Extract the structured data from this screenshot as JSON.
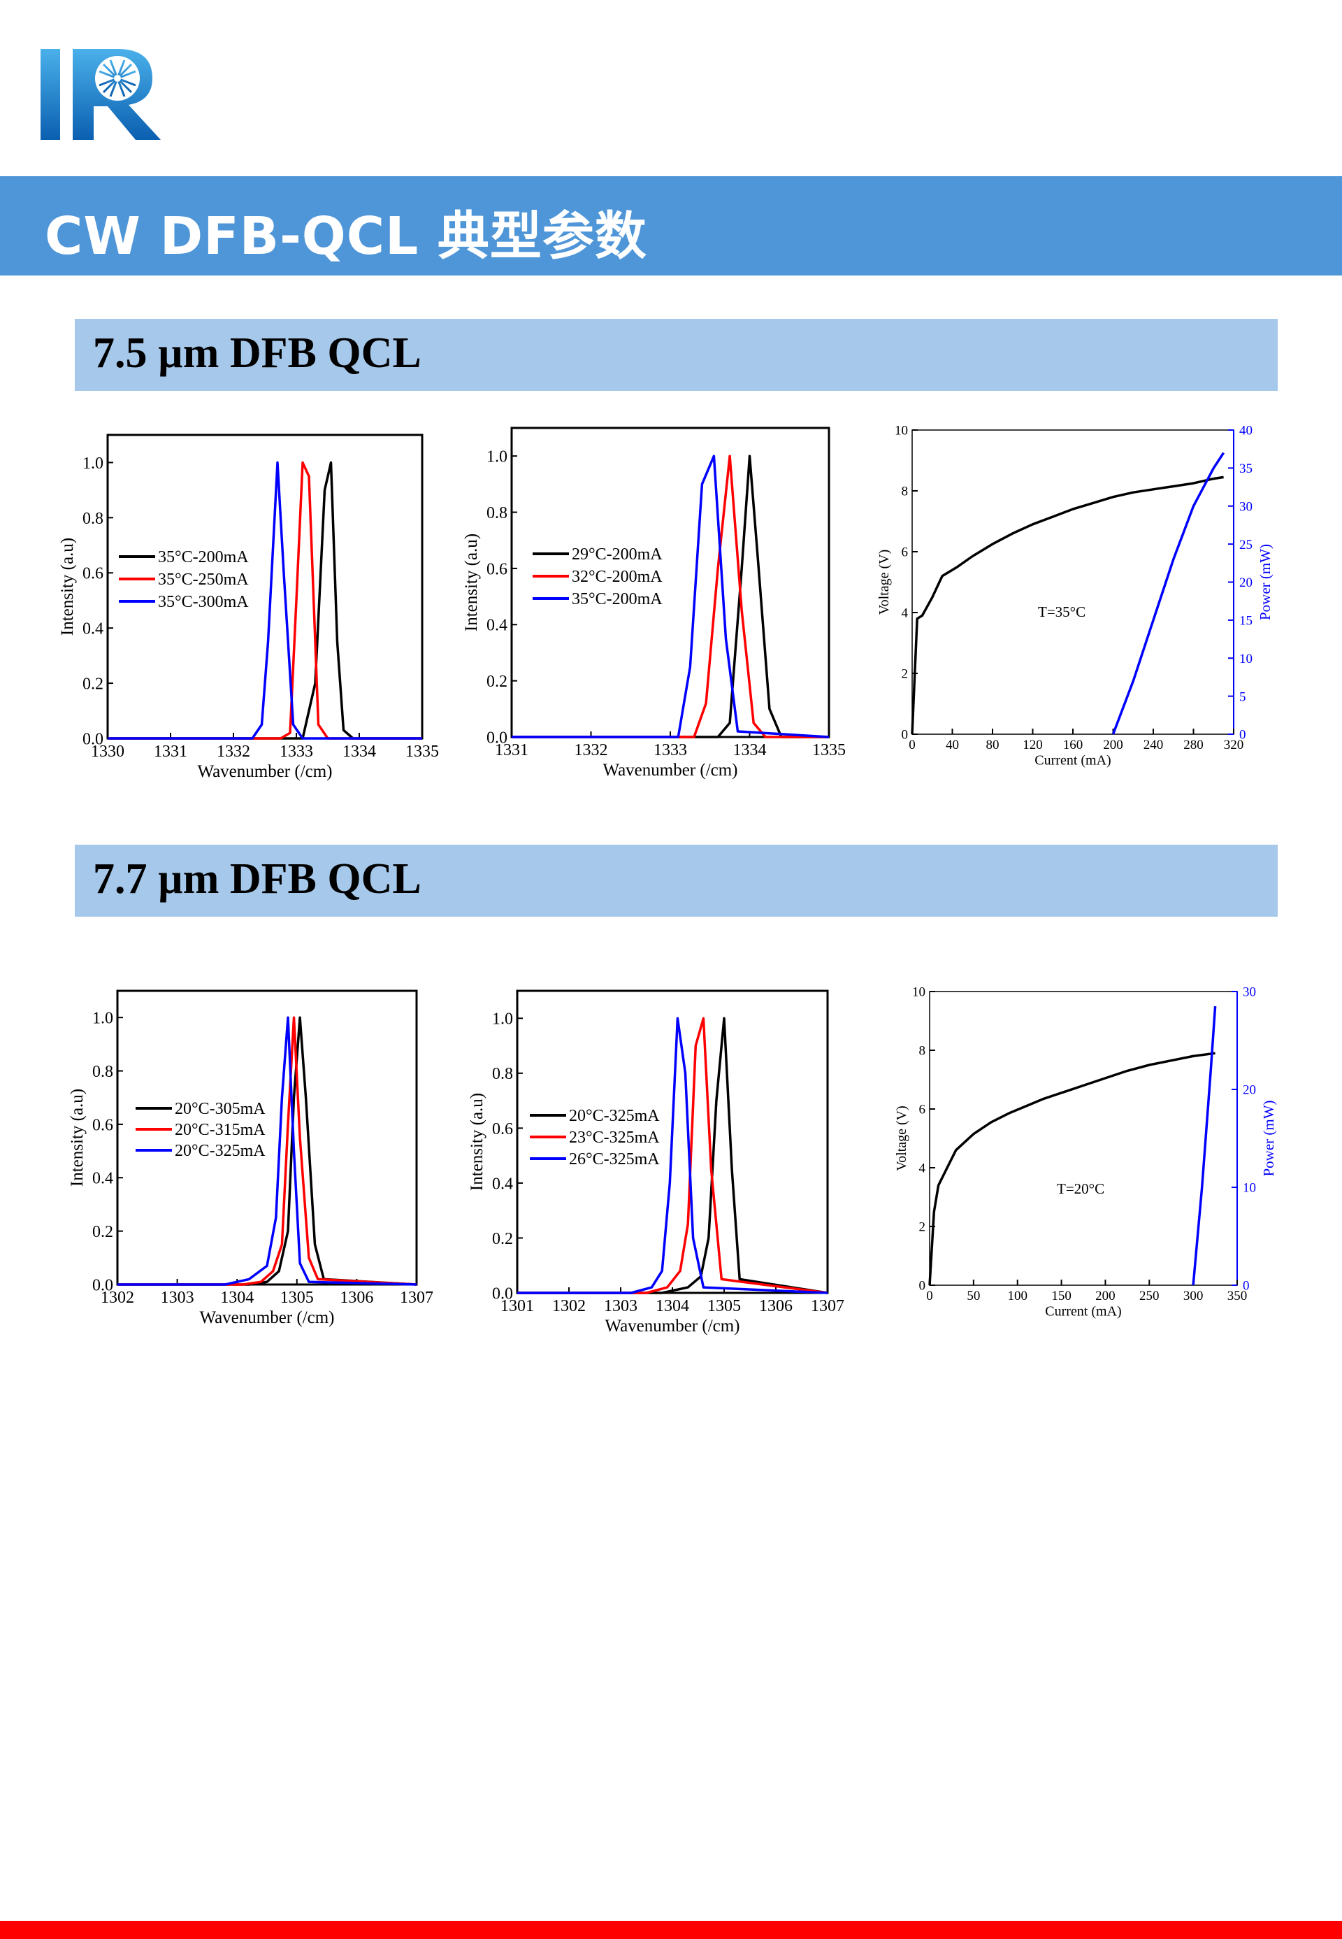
{
  "header": {
    "title": "CW DFB-QCL 典型参数",
    "colors": {
      "title_bar": "#4f96d8",
      "section_bar": "#a6c8ea",
      "bottom_bar": "#ff0000",
      "logo": "#1a78c2"
    }
  },
  "sections": [
    {
      "title": "7.5 µm DFB QCL"
    },
    {
      "title": "7.7 µm DFB QCL"
    }
  ],
  "chart_data": [
    {
      "id": "c1",
      "type": "line",
      "xlabel": "Wavenumber (/cm)",
      "ylabel": "Intensity (a.u)",
      "xlim": [
        1330,
        1335
      ],
      "ylim": [
        0,
        1.1
      ],
      "xticks": [
        "1330",
        "1331",
        "1332",
        "1333",
        "1334",
        "1335"
      ],
      "yticks": [
        "0.0",
        "0.2",
        "0.4",
        "0.6",
        "0.8",
        "1.0"
      ],
      "legend_position": "left-middle",
      "series": [
        {
          "name": "35°C-200mA",
          "color": "#000000",
          "x": [
            1330,
            1333.1,
            1333.3,
            1333.45,
            1333.55,
            1333.65,
            1333.75,
            1333.9,
            1335
          ],
          "y": [
            0,
            0,
            0.2,
            0.9,
            1.0,
            0.35,
            0.03,
            0,
            0
          ]
        },
        {
          "name": "35°C-250mA",
          "color": "#ff0000",
          "x": [
            1330,
            1332.75,
            1332.9,
            1333.0,
            1333.1,
            1333.2,
            1333.35,
            1333.5,
            1335
          ],
          "y": [
            0,
            0,
            0.02,
            0.5,
            1.0,
            0.95,
            0.05,
            0,
            0
          ]
        },
        {
          "name": "35°C-300mA",
          "color": "#0000ff",
          "x": [
            1330,
            1332.3,
            1332.45,
            1332.55,
            1332.7,
            1332.8,
            1332.95,
            1333.1,
            1335
          ],
          "y": [
            0,
            0,
            0.05,
            0.35,
            1.0,
            0.6,
            0.05,
            0,
            0
          ]
        }
      ]
    },
    {
      "id": "c2",
      "type": "line",
      "xlabel": "Wavenumber (/cm)",
      "ylabel": "Intensity (a.u)",
      "xlim": [
        1331,
        1335
      ],
      "ylim": [
        0,
        1.1
      ],
      "xticks": [
        "1331",
        "1332",
        "1333",
        "1334",
        "1335"
      ],
      "yticks": [
        "0.0",
        "0.2",
        "0.4",
        "0.6",
        "0.8",
        "1.0"
      ],
      "legend_position": "left-middle",
      "series": [
        {
          "name": "29°C-200mA",
          "color": "#000000",
          "x": [
            1331,
            1333.6,
            1333.75,
            1333.9,
            1334.0,
            1334.1,
            1334.25,
            1334.4,
            1335
          ],
          "y": [
            0,
            0,
            0.05,
            0.6,
            1.0,
            0.65,
            0.1,
            0,
            0
          ]
        },
        {
          "name": "32°C-200mA",
          "color": "#ff0000",
          "x": [
            1331,
            1333.3,
            1333.45,
            1333.6,
            1333.75,
            1333.9,
            1334.05,
            1334.2,
            1335
          ],
          "y": [
            0,
            0,
            0.12,
            0.6,
            1.0,
            0.45,
            0.05,
            0,
            0
          ]
        },
        {
          "name": "35°C-200mA",
          "color": "#0000ff",
          "x": [
            1331,
            1333.1,
            1333.25,
            1333.4,
            1333.55,
            1333.7,
            1333.85,
            1335
          ],
          "y": [
            0,
            0,
            0.25,
            0.9,
            1.0,
            0.35,
            0.02,
            0
          ]
        }
      ]
    },
    {
      "id": "c3",
      "type": "line",
      "xlabel": "Current (mA)",
      "ylabel": "Voltage (V)",
      "y2label": "Power (mW)",
      "xlim": [
        0,
        320
      ],
      "ylim": [
        0,
        10
      ],
      "y2lim": [
        0,
        40
      ],
      "xticks": [
        "0",
        "40",
        "80",
        "120",
        "160",
        "200",
        "240",
        "280",
        "320"
      ],
      "yticks": [
        "0",
        "2",
        "4",
        "6",
        "8",
        "10"
      ],
      "y2ticks": [
        "0",
        "5",
        "10",
        "15",
        "20",
        "25",
        "30",
        "35",
        "40"
      ],
      "annotation": "T=35°C",
      "series": [
        {
          "axis": "left",
          "color": "#000000",
          "x": [
            0,
            5,
            10,
            20,
            30,
            45,
            60,
            80,
            100,
            120,
            140,
            160,
            180,
            200,
            220,
            240,
            260,
            280,
            300,
            310
          ],
          "y": [
            0,
            3.8,
            3.9,
            4.5,
            5.2,
            5.5,
            5.85,
            6.25,
            6.6,
            6.9,
            7.15,
            7.4,
            7.6,
            7.8,
            7.95,
            8.05,
            8.15,
            8.25,
            8.4,
            8.45
          ]
        },
        {
          "axis": "right",
          "color": "#0000ff",
          "x": [
            200,
            220,
            240,
            260,
            280,
            300,
            310
          ],
          "y": [
            0,
            7,
            15,
            23,
            30,
            35,
            37
          ]
        }
      ]
    },
    {
      "id": "c4",
      "type": "line",
      "xlabel": "Wavenumber (/cm)",
      "ylabel": "Intensity (a.u)",
      "xlim": [
        1302,
        1307
      ],
      "ylim": [
        0,
        1.1
      ],
      "xticks": [
        "1302",
        "1303",
        "1304",
        "1305",
        "1306",
        "1307"
      ],
      "yticks": [
        "0.0",
        "0.2",
        "0.4",
        "0.6",
        "0.8",
        "1.0"
      ],
      "legend_position": "left-middle",
      "series": [
        {
          "name": "20°C-305mA",
          "color": "#000000",
          "x": [
            1302,
            1304.2,
            1304.5,
            1304.7,
            1304.85,
            1304.95,
            1305.05,
            1305.15,
            1305.3,
            1305.45,
            1307
          ],
          "y": [
            0,
            0,
            0.01,
            0.05,
            0.2,
            0.7,
            1.0,
            0.7,
            0.15,
            0.02,
            0
          ]
        },
        {
          "name": "20°C-315mA",
          "color": "#ff0000",
          "x": [
            1302,
            1304.1,
            1304.4,
            1304.6,
            1304.75,
            1304.85,
            1304.95,
            1305.05,
            1305.2,
            1305.35,
            1307
          ],
          "y": [
            0,
            0,
            0.01,
            0.05,
            0.15,
            0.6,
            1.0,
            0.55,
            0.1,
            0.02,
            0
          ]
        },
        {
          "name": "20°C-325mA",
          "color": "#0000ff",
          "x": [
            1302,
            1303.8,
            1304.2,
            1304.5,
            1304.65,
            1304.75,
            1304.85,
            1304.95,
            1305.05,
            1305.2,
            1307
          ],
          "y": [
            0,
            0,
            0.02,
            0.07,
            0.25,
            0.7,
            1.0,
            0.5,
            0.08,
            0.01,
            0
          ]
        }
      ]
    },
    {
      "id": "c5",
      "type": "line",
      "xlabel": "Wavenumber (/cm)",
      "ylabel": "Intensity (a.u)",
      "xlim": [
        1301,
        1307
      ],
      "ylim": [
        0,
        1.1
      ],
      "xticks": [
        "1301",
        "1302",
        "1303",
        "1304",
        "1305",
        "1306",
        "1307"
      ],
      "yticks": [
        "0.0",
        "0.2",
        "0.4",
        "0.6",
        "0.8",
        "1.0"
      ],
      "legend_position": "left-middle",
      "series": [
        {
          "name": "20°C-325mA",
          "color": "#000000",
          "x": [
            1301,
            1303.8,
            1304.3,
            1304.55,
            1304.7,
            1304.85,
            1305.0,
            1305.15,
            1305.3,
            1307
          ],
          "y": [
            0,
            0,
            0.02,
            0.06,
            0.2,
            0.7,
            1.0,
            0.45,
            0.05,
            0
          ]
        },
        {
          "name": "23°C-325mA",
          "color": "#ff0000",
          "x": [
            1301,
            1303.5,
            1303.9,
            1304.15,
            1304.3,
            1304.45,
            1304.6,
            1304.75,
            1304.95,
            1307
          ],
          "y": [
            0,
            0,
            0.02,
            0.08,
            0.25,
            0.9,
            1.0,
            0.45,
            0.05,
            0
          ]
        },
        {
          "name": "26°C-325mA",
          "color": "#0000ff",
          "x": [
            1301,
            1303.2,
            1303.6,
            1303.8,
            1303.95,
            1304.1,
            1304.25,
            1304.4,
            1304.6,
            1307
          ],
          "y": [
            0,
            0,
            0.02,
            0.08,
            0.4,
            1.0,
            0.8,
            0.2,
            0.02,
            0
          ]
        }
      ]
    },
    {
      "id": "c6",
      "type": "line",
      "xlabel": "Current (mA)",
      "ylabel": "Voltage (V)",
      "y2label": "Power (mW)",
      "xlim": [
        0,
        350
      ],
      "ylim": [
        0,
        10
      ],
      "y2lim": [
        0,
        30
      ],
      "xticks": [
        "0",
        "50",
        "100",
        "150",
        "200",
        "250",
        "300",
        "350"
      ],
      "yticks": [
        "0",
        "2",
        "4",
        "6",
        "8",
        "10"
      ],
      "y2ticks": [
        "0",
        "10",
        "20",
        "30"
      ],
      "annotation": "T=20°C",
      "series": [
        {
          "axis": "left",
          "color": "#000000",
          "x": [
            0,
            5,
            10,
            20,
            30,
            50,
            70,
            90,
            110,
            130,
            150,
            175,
            200,
            225,
            250,
            275,
            300,
            325
          ],
          "y": [
            0,
            2.5,
            3.4,
            4.0,
            4.6,
            5.15,
            5.55,
            5.85,
            6.1,
            6.35,
            6.55,
            6.8,
            7.05,
            7.3,
            7.5,
            7.65,
            7.8,
            7.9
          ]
        },
        {
          "axis": "right",
          "color": "#0000ff",
          "x": [
            300,
            305,
            310,
            315,
            320,
            325
          ],
          "y": [
            0,
            5,
            10,
            16,
            22,
            28.5
          ]
        }
      ]
    }
  ]
}
